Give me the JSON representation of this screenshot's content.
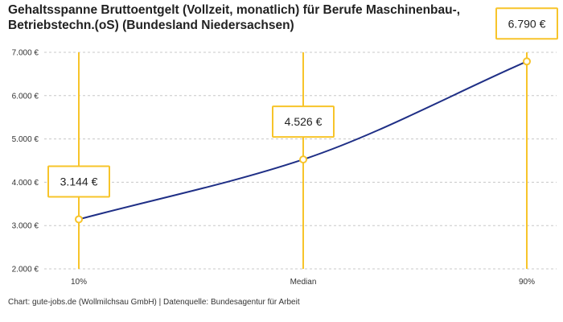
{
  "chart_data": {
    "type": "line",
    "title": "Gehaltsspanne Bruttoentgelt (Vollzeit, monatlich) für Berufe Maschinenbau-, Betriebstechn.(oS) (Bundesland Niedersachsen)",
    "categories": [
      "10%",
      "Median",
      "90%"
    ],
    "values": [
      3144,
      4526,
      6790
    ],
    "value_labels": [
      "3.144 €",
      "4.526 €",
      "6.790 €"
    ],
    "ylim": [
      2000,
      7000
    ],
    "y_ticks": [
      {
        "value": 2000,
        "label": "2.000 €"
      },
      {
        "value": 3000,
        "label": "3.000 €"
      },
      {
        "value": 4000,
        "label": "4.000 €"
      },
      {
        "value": 5000,
        "label": "5.000 €"
      },
      {
        "value": 6000,
        "label": "6.000 €"
      },
      {
        "value": 7000,
        "label": "7.000 €"
      }
    ],
    "grid": true,
    "colors": {
      "line": "#1f2f86",
      "marker": "#f7c42a",
      "grid": "#c8c8c8"
    }
  },
  "credit": "Chart: gute-jobs.de (Wollmilchsau GmbH) | Datenquelle: Bundesagentur für Arbeit"
}
